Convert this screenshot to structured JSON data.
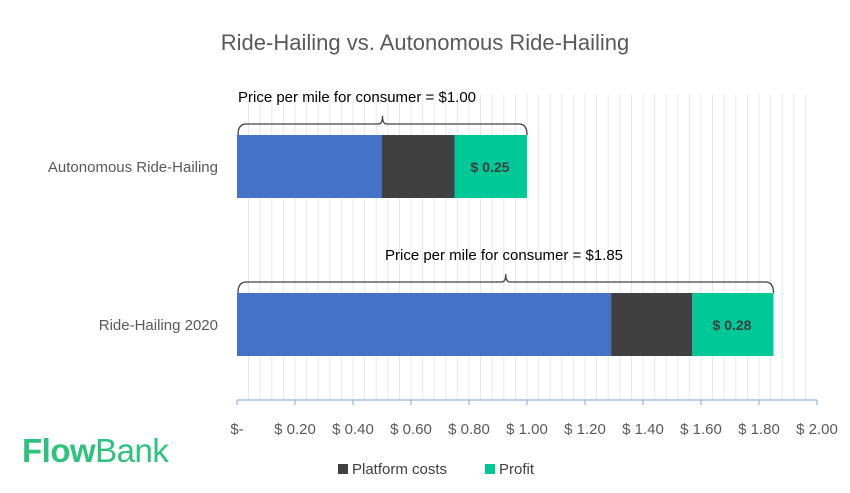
{
  "chart_data": {
    "type": "bar",
    "orientation": "horizontal",
    "stacked": true,
    "title": "Ride-Hailing vs. Autonomous Ride-Hailing",
    "categories": [
      "Autonomous Ride-Hailing",
      "Ride-Hailing 2020"
    ],
    "series": [
      {
        "values": [
          0.5,
          1.29
        ],
        "color": "#4472c4"
      },
      {
        "name": "Platform costs",
        "values": [
          0.25,
          0.28
        ],
        "color": "#404040"
      },
      {
        "name": "Profit",
        "values": [
          0.25,
          0.28
        ],
        "color": "#00c896"
      }
    ],
    "data_labels": [
      "$ 0.25",
      "$ 0.28"
    ],
    "annotations": [
      "Price per mile for consumer = $1.00",
      "Price per mile for consumer = $1.85"
    ],
    "xlim": [
      0,
      2.0
    ],
    "tick_labels": [
      "$-",
      "$ 0.20",
      "$ 0.40",
      "$ 0.60",
      "$ 0.80",
      "$ 1.00",
      "$ 1.20",
      "$ 1.40",
      "$ 1.60",
      "$ 1.80",
      "$ 2.00"
    ],
    "grid": true,
    "legend_position": "bottom"
  },
  "logo": {
    "part1": "Flow",
    "part2": "Bank"
  }
}
